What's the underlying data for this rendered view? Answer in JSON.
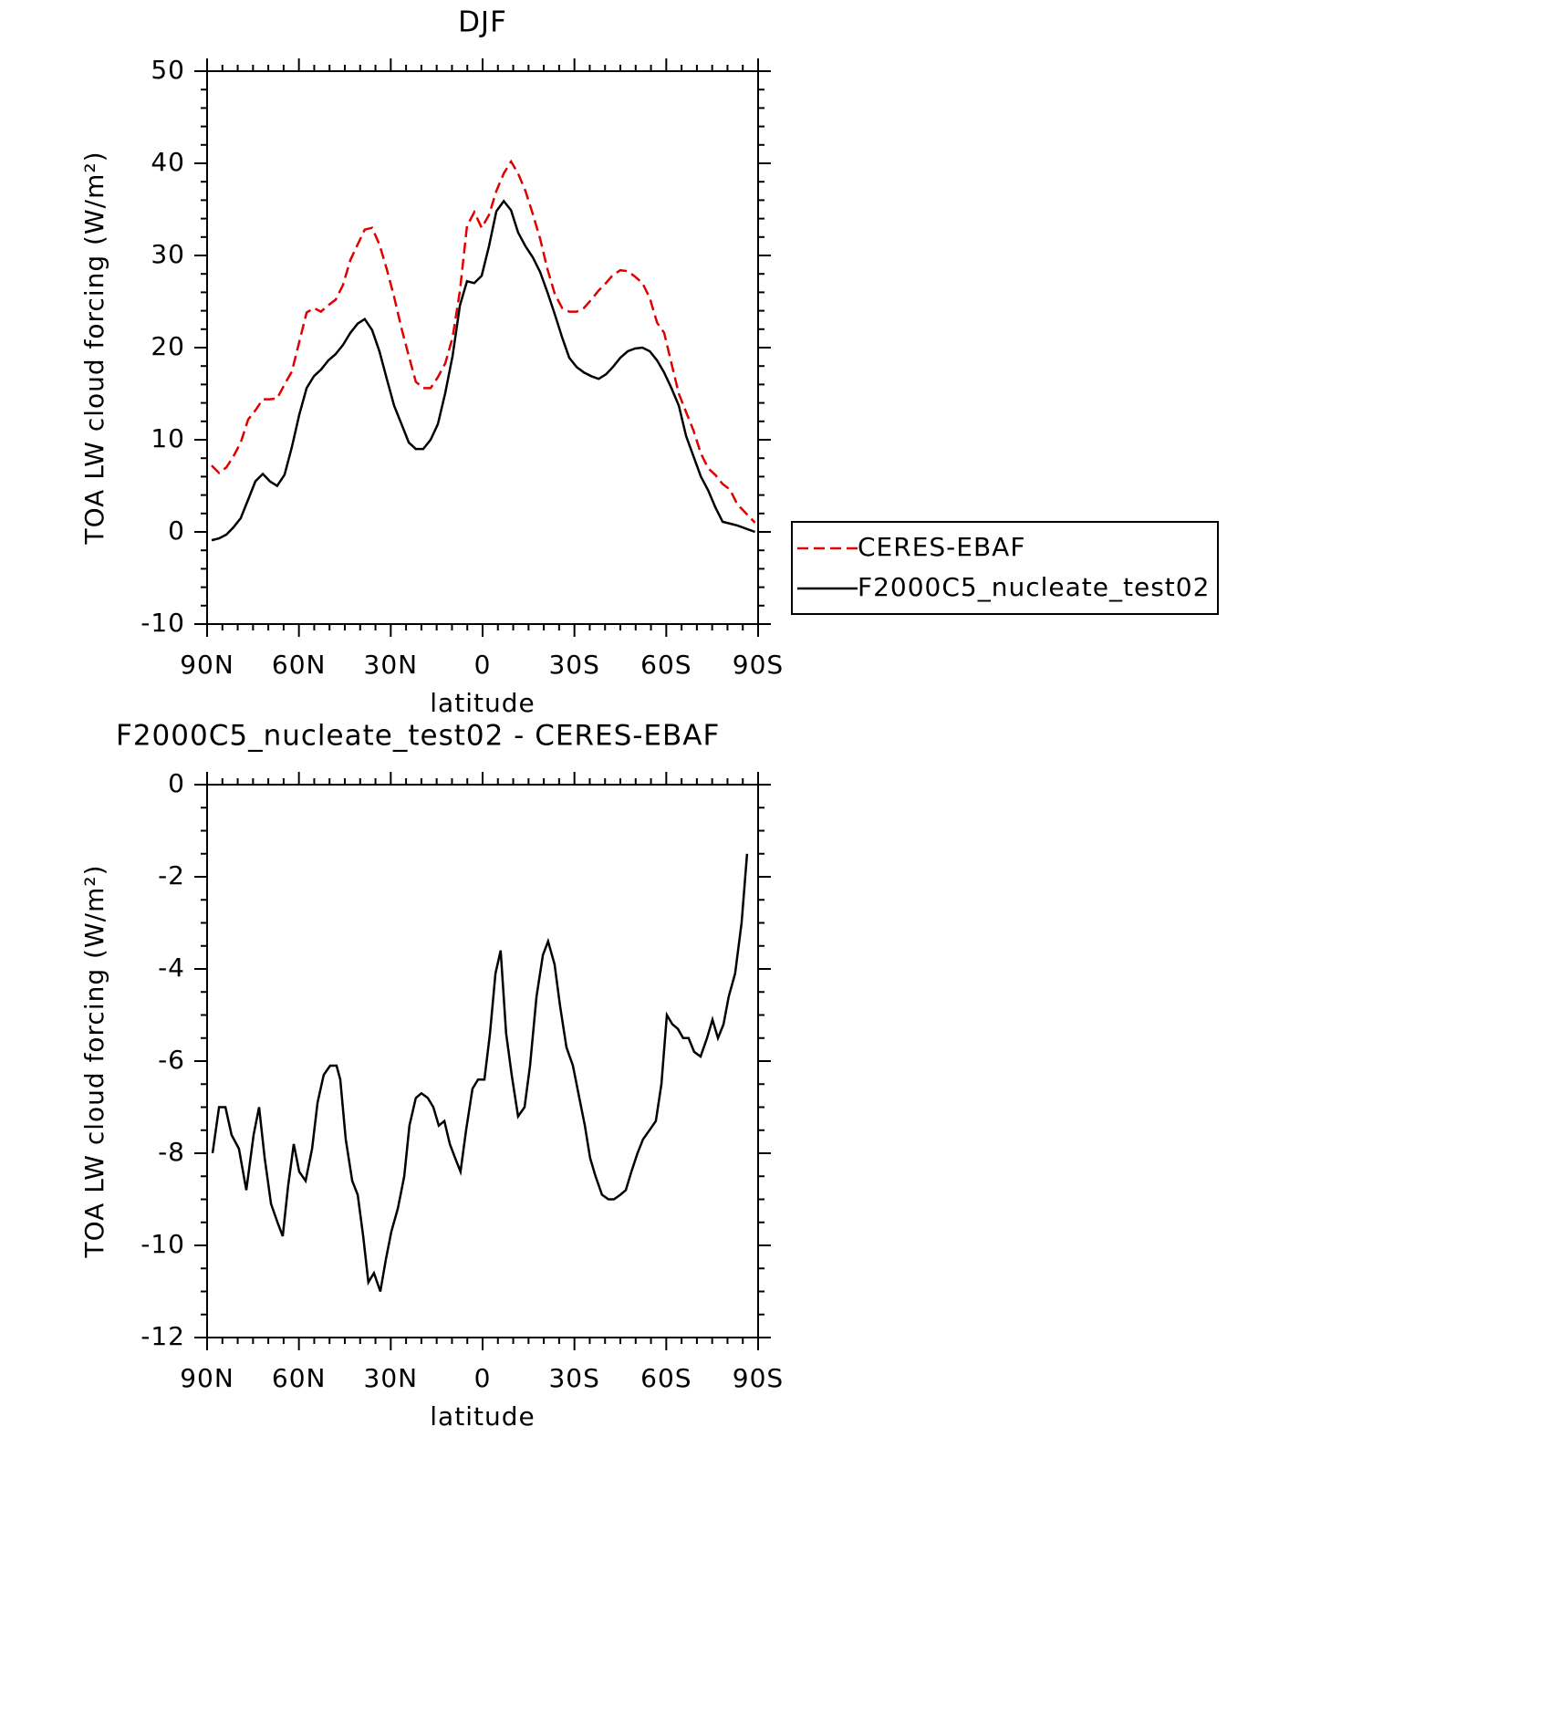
{
  "chart_data": [
    {
      "type": "line",
      "title": "DJF",
      "x_label": "latitude",
      "y_label": "TOA LW cloud forcing (W/m²)",
      "xlim": [
        90,
        -90
      ],
      "xticks": [
        {
          "value": 90,
          "label": "90N"
        },
        {
          "value": 60,
          "label": "60N"
        },
        {
          "value": 30,
          "label": "30N"
        },
        0,
        {
          "value": -30,
          "label": "30S"
        },
        {
          "value": -60,
          "label": "60S"
        },
        {
          "value": -90,
          "label": "90S"
        }
      ],
      "ylim": [
        -10,
        50
      ],
      "yticks": [
        -10,
        0,
        10,
        20,
        30,
        40,
        50
      ],
      "legend": "outside-right",
      "x": [
        88.5,
        86.1,
        83.7,
        81.4,
        79.0,
        76.6,
        74.2,
        71.8,
        69.5,
        67.1,
        64.7,
        62.3,
        59.9,
        57.5,
        55.1,
        52.8,
        50.4,
        48.0,
        45.6,
        43.2,
        40.8,
        38.5,
        36.1,
        33.7,
        31.3,
        28.9,
        26.5,
        24.1,
        21.8,
        19.4,
        17.0,
        14.6,
        12.2,
        9.8,
        7.4,
        5.1,
        2.7,
        0.3,
        -2.1,
        -4.5,
        -6.9,
        -9.3,
        -11.6,
        -14.0,
        -16.4,
        -18.8,
        -21.2,
        -23.6,
        -26.0,
        -28.3,
        -30.7,
        -33.1,
        -35.5,
        -37.9,
        -40.3,
        -42.6,
        -45.0,
        -47.4,
        -49.8,
        -52.2,
        -54.6,
        -57.0,
        -59.3,
        -61.7,
        -64.1,
        -66.5,
        -68.9,
        -71.3,
        -73.7,
        -76.0,
        -78.4,
        -80.8,
        -83.2,
        -89.0
      ],
      "series": [
        {
          "name": "CERES-EBAF",
          "color": "#e00000",
          "line_style": "dashed",
          "values": [
            7.2,
            6.4,
            7.0,
            8.2,
            9.7,
            12.2,
            13.2,
            14.4,
            14.4,
            14.5,
            16.0,
            17.4,
            20.6,
            23.8,
            24.3,
            23.9,
            24.6,
            25.2,
            26.8,
            29.5,
            31.2,
            32.8,
            33.0,
            31.2,
            28.5,
            25.5,
            22.1,
            19.1,
            16.3,
            15.6,
            15.6,
            16.8,
            18.3,
            21.1,
            26.2,
            33.2,
            34.7,
            33.0,
            34.4,
            37.0,
            38.9,
            40.2,
            38.9,
            37.0,
            34.5,
            31.8,
            28.5,
            25.8,
            24.3,
            23.9,
            23.9,
            24.3,
            25.2,
            26.2,
            27.0,
            27.9,
            28.4,
            28.3,
            27.7,
            27.0,
            25.4,
            22.7,
            21.6,
            18.3,
            15.0,
            13.0,
            11.0,
            8.5,
            6.9,
            6.2,
            5.2,
            4.6,
            3.0,
            1.0
          ]
        },
        {
          "name": "F2000C5_nucleate_test02",
          "color": "#000000",
          "line_style": "solid",
          "values": [
            -0.9,
            -0.7,
            -0.3,
            0.5,
            1.5,
            3.5,
            5.5,
            6.3,
            5.5,
            5.0,
            6.2,
            9.2,
            12.7,
            15.6,
            16.9,
            17.6,
            18.6,
            19.3,
            20.3,
            21.6,
            22.6,
            23.1,
            21.9,
            19.6,
            16.6,
            13.7,
            11.7,
            9.7,
            9.0,
            9.0,
            10.0,
            11.7,
            15.1,
            19.1,
            24.6,
            27.2,
            27.0,
            27.8,
            31.0,
            34.8,
            35.9,
            34.9,
            32.5,
            31.0,
            29.8,
            28.2,
            26.0,
            23.6,
            21.1,
            18.9,
            17.9,
            17.3,
            16.9,
            16.6,
            17.1,
            17.9,
            18.9,
            19.6,
            19.9,
            20.0,
            19.6,
            18.6,
            17.3,
            15.6,
            13.7,
            10.4,
            8.2,
            6.0,
            4.5,
            2.7,
            1.1,
            0.9,
            0.7,
            0.0
          ]
        }
      ]
    },
    {
      "type": "line",
      "title": "F2000C5_nucleate_test02 - CERES-EBAF",
      "x_label": "latitude",
      "y_label": "TOA LW cloud forcing (W/m²)",
      "xlim": [
        90,
        -90
      ],
      "xticks": [
        {
          "value": 90,
          "label": "90N"
        },
        {
          "value": 60,
          "label": "60N"
        },
        {
          "value": 30,
          "label": "30N"
        },
        0,
        {
          "value": -30,
          "label": "30S"
        },
        {
          "value": -60,
          "label": "60S"
        },
        {
          "value": -90,
          "label": "90S"
        }
      ],
      "ylim": [
        -12,
        0
      ],
      "yticks": [
        -12,
        -10,
        -8,
        -6,
        -4,
        -2,
        0
      ],
      "x": [
        88.2,
        86.1,
        84.0,
        82.0,
        79.6,
        77.2,
        74.8,
        73.0,
        71.2,
        69.1,
        67.0,
        65.3,
        63.5,
        61.7,
        59.9,
        57.8,
        55.7,
        53.9,
        51.9,
        49.8,
        47.7,
        46.5,
        44.7,
        42.6,
        40.8,
        39.0,
        37.3,
        35.5,
        33.4,
        31.6,
        29.8,
        27.7,
        25.6,
        23.9,
        21.8,
        20.0,
        17.9,
        16.1,
        14.3,
        12.5,
        10.7,
        9.0,
        7.2,
        5.4,
        3.3,
        1.5,
        -0.6,
        -2.4,
        -4.2,
        -5.9,
        -7.7,
        -9.5,
        -11.6,
        -13.7,
        -15.5,
        -17.6,
        -19.7,
        -21.4,
        -23.5,
        -25.3,
        -27.4,
        -29.5,
        -31.3,
        -33.4,
        -35.1,
        -36.9,
        -39.0,
        -41.1,
        -42.9,
        -45.0,
        -46.8,
        -48.6,
        -50.6,
        -52.4,
        -54.5,
        -56.6,
        -58.4,
        -60.2,
        -62.0,
        -63.8,
        -65.5,
        -67.3,
        -69.1,
        -71.2,
        -73.3,
        -75.1,
        -76.9,
        -78.7,
        -80.4,
        -82.5,
        -84.6,
        -86.4
      ],
      "series": [
        {
          "color": "#000000",
          "line_style": "solid",
          "values": [
            -8.0,
            -7.0,
            -7.0,
            -7.6,
            -7.9,
            -8.8,
            -7.6,
            -7.0,
            -8.1,
            -9.1,
            -9.5,
            -9.8,
            -8.7,
            -7.8,
            -8.4,
            -8.6,
            -7.9,
            -6.9,
            -6.3,
            -6.1,
            -6.1,
            -6.4,
            -7.7,
            -8.6,
            -8.9,
            -9.8,
            -10.8,
            -10.6,
            -11.0,
            -10.3,
            -9.7,
            -9.2,
            -8.5,
            -7.4,
            -6.8,
            -6.7,
            -6.8,
            -7.0,
            -7.4,
            -7.3,
            -7.8,
            -8.1,
            -8.4,
            -7.5,
            -6.6,
            -6.4,
            -6.4,
            -5.4,
            -4.1,
            -3.6,
            -5.4,
            -6.3,
            -7.2,
            -7.0,
            -6.1,
            -4.6,
            -3.7,
            -3.4,
            -3.9,
            -4.8,
            -5.7,
            -6.1,
            -6.7,
            -7.4,
            -8.1,
            -8.5,
            -8.9,
            -9.0,
            -9.0,
            -8.9,
            -8.8,
            -8.4,
            -8.0,
            -7.7,
            -7.5,
            -7.3,
            -6.5,
            -5.0,
            -5.2,
            -5.3,
            -5.5,
            -5.5,
            -5.8,
            -5.9,
            -5.5,
            -5.1,
            -5.5,
            -5.2,
            -4.6,
            -4.1,
            -3.0,
            -1.5
          ]
        }
      ]
    }
  ]
}
